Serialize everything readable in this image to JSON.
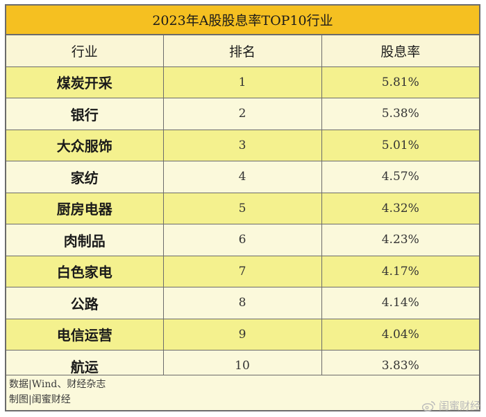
{
  "title": "2023年A股股息率TOP10行业",
  "table": {
    "headers": [
      "行业",
      "排名",
      "股息率"
    ],
    "rows": [
      {
        "industry": "煤炭开采",
        "rank": "1",
        "yield": "5.81%"
      },
      {
        "industry": "银行",
        "rank": "2",
        "yield": "5.38%"
      },
      {
        "industry": "大众服饰",
        "rank": "3",
        "yield": "5.01%"
      },
      {
        "industry": "家纺",
        "rank": "4",
        "yield": "4.57%"
      },
      {
        "industry": "厨房电器",
        "rank": "5",
        "yield": "4.32%"
      },
      {
        "industry": "肉制品",
        "rank": "6",
        "yield": "4.23%"
      },
      {
        "industry": "白色家电",
        "rank": "7",
        "yield": "4.17%"
      },
      {
        "industry": "公路",
        "rank": "8",
        "yield": "4.14%"
      },
      {
        "industry": "电信运营",
        "rank": "9",
        "yield": "4.04%"
      },
      {
        "industry": "航运",
        "rank": "10",
        "yield": "3.83%"
      }
    ]
  },
  "footer": {
    "source": "数据|Wind、财经杂志",
    "credit": "制图|闺蜜财经"
  },
  "watermark": {
    "text": "闺蜜财经",
    "icon": "weibo-icon"
  },
  "colors": {
    "title_bg": "#f5c021",
    "row_yellow": "#f4f18e",
    "row_cream": "#fbf9db",
    "border": "#6b6b6b"
  }
}
